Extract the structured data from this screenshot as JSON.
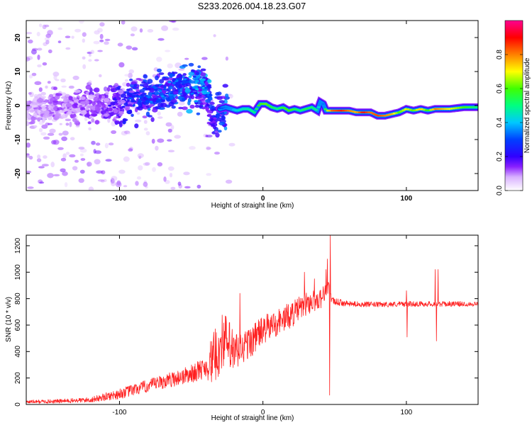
{
  "title": "S233.2026.004.18.23.G07",
  "chart_data": [
    {
      "type": "heatmap",
      "title": "S233.2026.004.18.23.G07",
      "xlabel": "Height of straight line (km)",
      "ylabel": "Frequency (Hz)",
      "xlim": [
        -165,
        150
      ],
      "ylim": [
        -25,
        25
      ],
      "xticks": [
        -100,
        0,
        100
      ],
      "yticks": [
        -20,
        -10,
        0,
        10,
        20
      ],
      "colorbar": {
        "label": "Normalized spectral amplitude",
        "range": [
          0,
          1
        ],
        "ticks": [
          "0.0",
          "0.2",
          "0.4",
          "0.6",
          "0.8"
        ],
        "colormap": [
          "#ffffff",
          "#c8a0ff",
          "#7000e0",
          "#0000ff",
          "#00c8ff",
          "#00ff80",
          "#80ff00",
          "#ffff00",
          "#ff8000",
          "#ff0000",
          "#ff0090"
        ]
      },
      "ridge": {
        "x": [
          -165,
          -150,
          -130,
          -110,
          -100,
          -90,
          -80,
          -70,
          -60,
          -50,
          -42,
          -38,
          -34,
          -30,
          -26,
          -22,
          -18,
          -14,
          -10,
          -6,
          -2,
          2,
          6,
          10,
          14,
          18,
          22,
          26,
          30,
          34,
          38,
          40,
          42,
          44,
          48,
          55,
          60,
          65,
          70,
          75,
          80,
          85,
          90,
          95,
          100,
          105,
          110,
          115,
          120,
          130,
          140,
          150
        ],
        "frequency": [
          -1,
          -1,
          0,
          -0.5,
          0.5,
          2,
          3,
          4,
          5,
          6,
          6,
          5,
          -4,
          -1,
          -0.5,
          -1,
          -1.5,
          -1,
          -1,
          -2,
          0.5,
          0.5,
          -0.5,
          -1,
          -0.5,
          -1.5,
          -1,
          -1.5,
          -1,
          -0.5,
          -1.5,
          1,
          0.5,
          -1.5,
          -1.5,
          -1.5,
          -1.5,
          -2,
          -2,
          -2,
          -3,
          -3,
          -2.5,
          -2,
          -1,
          -1.5,
          -1,
          -1.5,
          -1,
          -1,
          -0.5,
          -0.5
        ],
        "amplitude": [
          0.1,
          0.12,
          0.14,
          0.16,
          0.22,
          0.28,
          0.3,
          0.32,
          0.34,
          0.36,
          0.38,
          0.38,
          0.26,
          0.3,
          0.34,
          0.36,
          0.44,
          0.46,
          0.48,
          0.5,
          0.6,
          0.62,
          0.55,
          0.5,
          0.58,
          0.6,
          0.55,
          0.5,
          0.55,
          0.52,
          0.48,
          0.36,
          0.34,
          0.6,
          0.82,
          0.88,
          0.8,
          0.75,
          0.9,
          0.8,
          0.85,
          0.8,
          0.75,
          0.6,
          0.7,
          0.6,
          0.75,
          0.55,
          0.8,
          0.7,
          0.6,
          0.5
        ]
      }
    },
    {
      "type": "line",
      "xlabel": "Height of straight line (km)",
      "ylabel": "SNR (10 * v/v)",
      "xlim": [
        -165,
        150
      ],
      "ylim": [
        0,
        1280
      ],
      "xticks": [
        -100,
        0,
        100
      ],
      "yticks": [
        0,
        200,
        400,
        600,
        800,
        1000,
        1200
      ],
      "series": [
        {
          "name": "SNR",
          "color": "#ff2020",
          "envelope_x": [
            -165,
            -140,
            -120,
            -100,
            -90,
            -80,
            -70,
            -60,
            -50,
            -40,
            -35,
            -30,
            -28,
            -20,
            -10,
            0,
            10,
            20,
            30,
            40,
            44,
            46,
            48,
            60,
            80,
            100,
            120,
            140,
            150
          ],
          "envelope_y": [
            20,
            25,
            35,
            80,
            110,
            140,
            170,
            200,
            230,
            280,
            340,
            420,
            500,
            380,
            460,
            560,
            620,
            680,
            760,
            800,
            860,
            900,
            780,
            760,
            755,
            760,
            760,
            760,
            760
          ],
          "noise_x": [
            -165,
            -120,
            -100,
            -60,
            -40,
            -35,
            -25,
            -15,
            0,
            20,
            40,
            48,
            60,
            150
          ],
          "noise_amp": [
            12,
            20,
            40,
            60,
            80,
            200,
            220,
            130,
            110,
            100,
            80,
            30,
            20,
            20
          ],
          "spikes": [
            {
              "x": -16,
              "y": 840
            },
            {
              "x": -3,
              "y": 640
            },
            {
              "x": 29,
              "y": 1000
            },
            {
              "x": 36,
              "y": 950
            },
            {
              "x": 44,
              "y": 1020
            },
            {
              "x": 45,
              "y": 1100
            },
            {
              "x": 47,
              "y": 1280
            },
            {
              "x": 46.5,
              "y": 70
            },
            {
              "x": 100,
              "y": 860
            },
            {
              "x": 100.5,
              "y": 510
            },
            {
              "x": 120,
              "y": 1020
            },
            {
              "x": 121,
              "y": 480
            },
            {
              "x": 122,
              "y": 1020
            }
          ]
        }
      ]
    }
  ]
}
